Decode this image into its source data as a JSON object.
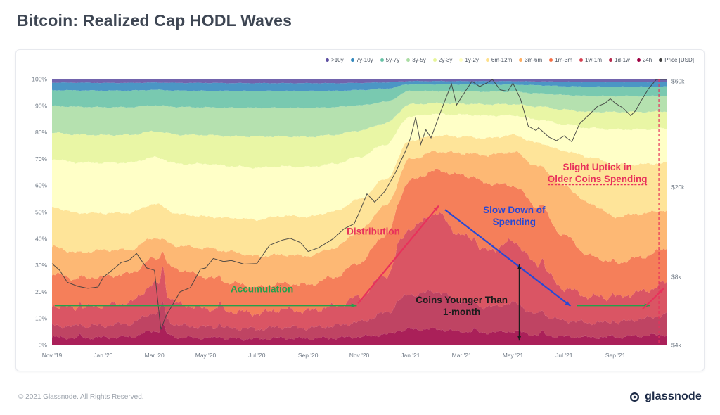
{
  "title": "Bitcoin: Realized Cap HODL Waves",
  "footer": {
    "copyright": "© 2021 Glassnode. All Rights Reserved.",
    "brand": "glassnode"
  },
  "chart_data": {
    "type": "area",
    "stacked": true,
    "title": "Bitcoin: Realized Cap HODL Waves",
    "x_axis": {
      "unit": "months-from-Nov-2019",
      "ticks": [
        {
          "t": 0,
          "label": "Nov '19"
        },
        {
          "t": 2,
          "label": "Jan '20"
        },
        {
          "t": 4,
          "label": "Mar '20"
        },
        {
          "t": 6,
          "label": "May '20"
        },
        {
          "t": 8,
          "label": "Jul '20"
        },
        {
          "t": 10,
          "label": "Sep '20"
        },
        {
          "t": 12,
          "label": "Nov '20"
        },
        {
          "t": 14,
          "label": "Jan '21"
        },
        {
          "t": 16,
          "label": "Mar '21"
        },
        {
          "t": 18,
          "label": "May '21"
        },
        {
          "t": 20,
          "label": "Jul '21"
        },
        {
          "t": 22,
          "label": "Sep '21"
        }
      ]
    },
    "y_axis_left": {
      "unit": "%",
      "min": 0,
      "max": 100,
      "ticks": [
        {
          "value": 0,
          "label": "0%"
        },
        {
          "value": 10,
          "label": "10%"
        },
        {
          "value": 20,
          "label": "20%"
        },
        {
          "value": 30,
          "label": "30%"
        },
        {
          "value": 40,
          "label": "40%"
        },
        {
          "value": 50,
          "label": "50%"
        },
        {
          "value": 60,
          "label": "60%"
        },
        {
          "value": 70,
          "label": "70%"
        },
        {
          "value": 80,
          "label": "80%"
        },
        {
          "value": 90,
          "label": "90%"
        },
        {
          "value": 100,
          "label": "100%"
        }
      ]
    },
    "y_axis_right": {
      "unit": "USD",
      "scale": "log",
      "min": 4000,
      "max": 60000,
      "ticks": [
        {
          "value": 60000,
          "label": "$60k"
        },
        {
          "value": 20000,
          "label": "$20k"
        },
        {
          "value": 8000,
          "label": "$8k"
        },
        {
          "value": 4000,
          "label": "$4k"
        }
      ]
    },
    "series": [
      {
        "name": ">10y",
        "color": "#5e4fa2",
        "values": [
          1.2,
          1.2,
          1.3,
          1.3,
          1.2,
          1.3,
          1.3,
          1.4,
          1.4,
          1.4,
          1.4,
          1.4,
          1.3,
          1.1,
          0.6,
          0.6,
          0.6,
          0.6,
          0.6,
          0.7,
          0.8,
          0.9,
          0.9,
          0.9,
          0.9
        ]
      },
      {
        "name": "7y-10y",
        "color": "#3288bd",
        "values": [
          2.8,
          2.9,
          2.9,
          2.9,
          2.8,
          2.9,
          3.0,
          3.0,
          3.0,
          3.0,
          3.0,
          2.9,
          2.7,
          2.3,
          1.2,
          1.2,
          1.2,
          1.2,
          1.2,
          1.3,
          1.5,
          1.6,
          1.6,
          1.6,
          1.6
        ]
      },
      {
        "name": "5y-7y",
        "color": "#66c2a5",
        "values": [
          6,
          6.2,
          6.3,
          6.3,
          6,
          6.2,
          6.3,
          6.5,
          6.5,
          6.5,
          6.5,
          6.2,
          5.8,
          5,
          2.5,
          2.5,
          2.5,
          2.5,
          2.5,
          2.8,
          3,
          3.2,
          3.2,
          3.2,
          3.2
        ]
      },
      {
        "name": "3y-5y",
        "color": "#abdda4",
        "values": [
          10,
          10.5,
          10.5,
          10.5,
          10,
          10.5,
          10.5,
          11,
          11,
          11,
          11,
          10.5,
          9.5,
          8,
          5,
          4.5,
          4.5,
          4.5,
          4.5,
          4.5,
          5,
          5.5,
          5.5,
          5.5,
          5.5
        ]
      },
      {
        "name": "2y-3y",
        "color": "#e6f598",
        "values": [
          10,
          10.5,
          10.5,
          10.5,
          10,
          11,
          11,
          11.5,
          12,
          11.5,
          11.5,
          11,
          10,
          8,
          4.5,
          4,
          4,
          4,
          4,
          4.5,
          5,
          5.5,
          6,
          6,
          6
        ]
      },
      {
        "name": "1y-2y",
        "color": "#ffffbf",
        "values": [
          18,
          19,
          19,
          19,
          18,
          19,
          20,
          20,
          20,
          19,
          19,
          18,
          16,
          13,
          9,
          8,
          8,
          8,
          7,
          8,
          9,
          10,
          12,
          12,
          12
        ]
      },
      {
        "name": "6m-12m",
        "color": "#fee08b",
        "values": [
          15,
          15,
          14,
          14,
          13,
          12,
          12,
          13,
          14,
          15,
          15,
          14,
          12,
          10,
          7,
          6,
          6,
          6,
          6,
          8,
          12,
          16,
          18,
          17,
          16.5
        ]
      },
      {
        "name": "3m-6m",
        "color": "#fdae61",
        "values": [
          10,
          10,
          10,
          9,
          8,
          9,
          11,
          12,
          12,
          11,
          11,
          11,
          12,
          11,
          8,
          7,
          8,
          10,
          12,
          14,
          17,
          18,
          16,
          15,
          13.5
        ]
      },
      {
        "name": "1m-3m",
        "color": "#f46d43",
        "values": [
          12,
          11,
          11,
          11,
          10,
          13,
          12,
          11,
          10,
          10,
          10,
          11,
          13,
          15,
          18,
          16,
          22,
          24,
          20,
          20,
          18,
          14,
          12,
          12,
          12
        ]
      },
      {
        "name": "1w-1m",
        "color": "#d53e4f",
        "values": [
          7.5,
          7.0,
          7.5,
          8.0,
          11.0,
          8.0,
          7.0,
          6.5,
          6.0,
          6.8,
          6.5,
          7.5,
          9.5,
          14.0,
          25.0,
          29.0,
          24.0,
          20.0,
          22.0,
          17.0,
          11.0,
          9.0,
          8.5,
          9.3,
          11.0
        ]
      },
      {
        "name": "1d-1w",
        "color": "#b62a4d",
        "values": [
          4.5,
          4.2,
          4.5,
          5.0,
          7.0,
          4.5,
          4.2,
          4.0,
          3.8,
          4.2,
          4.0,
          4.5,
          5.5,
          8.0,
          13.0,
          14.0,
          11.0,
          9.0,
          10.0,
          7.0,
          5.5,
          5.0,
          5.0,
          5.8,
          7.0
        ]
      },
      {
        "name": "24h",
        "color": "#9e0142",
        "values": [
          3.0,
          2.8,
          3.0,
          3.2,
          5.5,
          3.0,
          2.8,
          2.6,
          2.5,
          2.8,
          2.6,
          2.8,
          3.2,
          4.0,
          6.0,
          6.0,
          5.0,
          4.5,
          5.0,
          3.5,
          3.0,
          2.8,
          2.8,
          3.3,
          3.8
        ]
      }
    ],
    "price_series": {
      "name": "Price [USD]",
      "color": "#3f3f3f",
      "points": [
        [
          0,
          9200
        ],
        [
          0.3,
          8600
        ],
        [
          0.6,
          7600
        ],
        [
          1,
          7300
        ],
        [
          1.4,
          7150
        ],
        [
          1.8,
          7250
        ],
        [
          2,
          8000
        ],
        [
          2.4,
          8700
        ],
        [
          2.7,
          9300
        ],
        [
          3,
          9500
        ],
        [
          3.3,
          10200
        ],
        [
          3.7,
          8800
        ],
        [
          4,
          8600
        ],
        [
          4.25,
          4700
        ],
        [
          4.45,
          5400
        ],
        [
          4.8,
          6300
        ],
        [
          5,
          6900
        ],
        [
          5.4,
          7200
        ],
        [
          5.8,
          8700
        ],
        [
          6,
          8800
        ],
        [
          6.3,
          9700
        ],
        [
          6.7,
          9400
        ],
        [
          7,
          9500
        ],
        [
          7.5,
          9150
        ],
        [
          8,
          9200
        ],
        [
          8.5,
          11100
        ],
        [
          9,
          11700
        ],
        [
          9.3,
          11900
        ],
        [
          9.7,
          11400
        ],
        [
          10,
          10400
        ],
        [
          10.4,
          10800
        ],
        [
          10.8,
          11500
        ],
        [
          11,
          11900
        ],
        [
          11.4,
          13100
        ],
        [
          11.8,
          13800
        ],
        [
          12,
          15500
        ],
        [
          12.3,
          18700
        ],
        [
          12.6,
          17200
        ],
        [
          13,
          19200
        ],
        [
          13.4,
          23100
        ],
        [
          13.8,
          28900
        ],
        [
          14,
          33000
        ],
        [
          14.2,
          40800
        ],
        [
          14.4,
          31000
        ],
        [
          14.6,
          36000
        ],
        [
          14.8,
          33100
        ],
        [
          15,
          38200
        ],
        [
          15.3,
          47000
        ],
        [
          15.6,
          57400
        ],
        [
          15.8,
          46300
        ],
        [
          16,
          50300
        ],
        [
          16.4,
          58900
        ],
        [
          16.7,
          55800
        ],
        [
          17,
          58100
        ],
        [
          17.2,
          63500
        ],
        [
          17.5,
          54000
        ],
        [
          17.8,
          53200
        ],
        [
          18,
          57800
        ],
        [
          18.3,
          49100
        ],
        [
          18.6,
          37300
        ],
        [
          18.9,
          35700
        ],
        [
          19,
          36700
        ],
        [
          19.4,
          33400
        ],
        [
          19.7,
          32200
        ],
        [
          20,
          33800
        ],
        [
          20.3,
          31800
        ],
        [
          20.6,
          38200
        ],
        [
          21,
          42200
        ],
        [
          21.3,
          45600
        ],
        [
          21.6,
          47100
        ],
        [
          21.8,
          49300
        ],
        [
          22,
          47100
        ],
        [
          22.3,
          44900
        ],
        [
          22.6,
          41500
        ],
        [
          22.8,
          43800
        ],
        [
          23,
          48200
        ],
        [
          23.3,
          54700
        ],
        [
          23.6,
          61300
        ],
        [
          23.8,
          60200
        ],
        [
          24,
          61800
        ]
      ]
    },
    "annotations": [
      {
        "id": "accumulation",
        "lines": [
          "Accumulation"
        ],
        "color": "#23a14b"
      },
      {
        "id": "distribution",
        "lines": [
          "Distribution"
        ],
        "color": "#e8315b"
      },
      {
        "id": "slowdown",
        "lines": [
          "Slow Down of",
          "Spending"
        ],
        "color": "#2749d6"
      },
      {
        "id": "coins-younger",
        "lines": [
          "Coins Younger Than",
          "1-month"
        ],
        "color": "#1c1c1c"
      },
      {
        "id": "slight-uptick",
        "lines": [
          "Slight Uptick in",
          "Older Coins Spending"
        ],
        "color": "#e8315b"
      }
    ]
  }
}
